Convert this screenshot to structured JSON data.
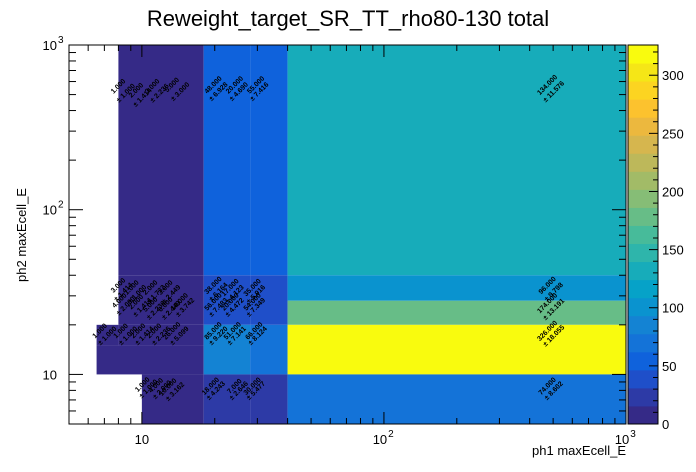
{
  "chart_data": {
    "type": "heatmap",
    "title": "Reweight_target_SR_TT_rho80-130 total",
    "xlabel": "ph1 maxEcell_E",
    "ylabel": "ph2 maxEcell_E",
    "x_scale": "log",
    "y_scale": "log",
    "xlim": [
      5,
      1000
    ],
    "ylim": [
      5,
      1000
    ],
    "x_ticks": [
      {
        "value": 10,
        "label": "10"
      },
      {
        "value": 100,
        "label": "10"
      },
      {
        "value": 1000,
        "label": "10"
      }
    ],
    "x_tick_exponents": [
      "",
      "2",
      "3"
    ],
    "y_ticks": [
      {
        "value": 10,
        "label": "10"
      },
      {
        "value": 100,
        "label": "10"
      },
      {
        "value": 1000,
        "label": "10"
      }
    ],
    "y_tick_exponents": [
      "",
      "2",
      "3"
    ],
    "colorbar": {
      "min": 0,
      "max": 326,
      "ticks": [
        "0",
        "50",
        "100",
        "150",
        "200",
        "250",
        "300"
      ],
      "tick_values": [
        0,
        50,
        100,
        150,
        200,
        250,
        300
      ],
      "palette": [
        "#352a87",
        "#2d3aa6",
        "#1f4fc9",
        "#0f62dc",
        "#1473d8",
        "#1483d3",
        "#0a93cf",
        "#06a2c8",
        "#17acba",
        "#2eb5ab",
        "#47bb9a",
        "#67bd87",
        "#86bd76",
        "#a2bb67",
        "#bdb85a",
        "#d6b64e",
        "#ecb83e",
        "#fcc22e",
        "#fcd421",
        "#f5e617",
        "#f9fb0e"
      ]
    },
    "x_edges": [
      5,
      6.5,
      7.5,
      8,
      9,
      10,
      12,
      14,
      18,
      20,
      25,
      28,
      32,
      40,
      1000
    ],
    "y_edges": [
      5,
      10,
      15,
      20,
      28,
      40,
      1000
    ],
    "cells": [
      {
        "x0": 8,
        "x1": 18,
        "y0": 40,
        "y1": 1000,
        "value": 12
      },
      {
        "x0": 18,
        "x1": 28,
        "y0": 40,
        "y1": 1000,
        "value": 48
      },
      {
        "x0": 28,
        "x1": 40,
        "y0": 40,
        "y1": 1000,
        "value": 55
      },
      {
        "x0": 40,
        "x1": 1000,
        "y0": 40,
        "y1": 1000,
        "value": 134
      },
      {
        "x0": 8,
        "x1": 18,
        "y0": 20,
        "y1": 40,
        "value": 8
      },
      {
        "x0": 18,
        "x1": 28,
        "y0": 20,
        "y1": 40,
        "value": 38
      },
      {
        "x0": 28,
        "x1": 40,
        "y0": 20,
        "y1": 40,
        "value": 45
      },
      {
        "x0": 40,
        "x1": 1000,
        "y0": 28,
        "y1": 40,
        "value": 96
      },
      {
        "x0": 40,
        "x1": 1000,
        "y0": 20,
        "y1": 28,
        "value": 174
      },
      {
        "x0": 6.5,
        "x1": 8,
        "y0": 15,
        "y1": 20,
        "value": 2
      },
      {
        "x0": 6.5,
        "x1": 18,
        "y0": 10,
        "y1": 15,
        "value": 10
      },
      {
        "x0": 8,
        "x1": 18,
        "y0": 15,
        "y1": 20,
        "value": 10
      },
      {
        "x0": 18,
        "x1": 28,
        "y0": 10,
        "y1": 20,
        "value": 85
      },
      {
        "x0": 28,
        "x1": 40,
        "y0": 10,
        "y1": 20,
        "value": 66
      },
      {
        "x0": 40,
        "x1": 1000,
        "y0": 10,
        "y1": 20,
        "value": 326
      },
      {
        "x0": 10,
        "x1": 18,
        "y0": 5,
        "y1": 10,
        "value": 10
      },
      {
        "x0": 18,
        "x1": 28,
        "y0": 5,
        "y1": 10,
        "value": 18
      },
      {
        "x0": 28,
        "x1": 40,
        "y0": 5,
        "y1": 10,
        "value": 30
      },
      {
        "x0": 40,
        "x1": 1000,
        "y0": 5,
        "y1": 10,
        "value": 74
      }
    ],
    "bin_labels": [
      {
        "x": 8.1,
        "y": 550,
        "text": "1.000"
      },
      {
        "x": 8.7,
        "y": 500,
        "text": "± 1.000"
      },
      {
        "x": 9.6,
        "y": 520,
        "text": "2.000"
      },
      {
        "x": 10.2,
        "y": 470,
        "text": "± 1.414"
      },
      {
        "x": 11.2,
        "y": 550,
        "text": "3.000"
      },
      {
        "x": 12.0,
        "y": 500,
        "text": "± 2.236"
      },
      {
        "x": 13.5,
        "y": 560,
        "text": "5.000"
      },
      {
        "x": 14.6,
        "y": 510,
        "text": "± 3.000"
      },
      {
        "x": 20.0,
        "y": 560,
        "text": "48.000"
      },
      {
        "x": 21.0,
        "y": 510,
        "text": "± 6.928"
      },
      {
        "x": 24.5,
        "y": 560,
        "text": "20.000"
      },
      {
        "x": 25.5,
        "y": 510,
        "text": "± 4.690"
      },
      {
        "x": 30.0,
        "y": 560,
        "text": "55.000"
      },
      {
        "x": 31.0,
        "y": 510,
        "text": "± 7.416"
      },
      {
        "x": 480,
        "y": 560,
        "text": "134.000"
      },
      {
        "x": 510,
        "y": 510,
        "text": "± 11.576"
      },
      {
        "x": 8.1,
        "y": 34,
        "text": "3.000"
      },
      {
        "x": 8.5,
        "y": 31,
        "text": "± 1.414"
      },
      {
        "x": 9.2,
        "y": 33,
        "text": "1.000"
      },
      {
        "x": 9.7,
        "y": 30,
        "text": "± 1.000"
      },
      {
        "x": 8.2,
        "y": 27.5,
        "text": "4.000"
      },
      {
        "x": 8.7,
        "y": 25.5,
        "text": "± 2.000"
      },
      {
        "x": 9.6,
        "y": 27,
        "text": "2.000"
      },
      {
        "x": 10.2,
        "y": 25,
        "text": "± 1.414"
      },
      {
        "x": 11.0,
        "y": 33,
        "text": "2.000"
      },
      {
        "x": 11.6,
        "y": 30,
        "text": "± 1.732"
      },
      {
        "x": 12.7,
        "y": 33,
        "text": "3.000"
      },
      {
        "x": 13.4,
        "y": 30,
        "text": "± 2.449"
      },
      {
        "x": 11.0,
        "y": 26,
        "text": "5.000"
      },
      {
        "x": 11.6,
        "y": 24,
        "text": "± 2.236"
      },
      {
        "x": 12.7,
        "y": 26,
        "text": "6.000"
      },
      {
        "x": 13.4,
        "y": 24,
        "text": "± 2.449"
      },
      {
        "x": 14.5,
        "y": 27,
        "text": "14.000"
      },
      {
        "x": 15.3,
        "y": 25,
        "text": "± 3.742"
      },
      {
        "x": 20.0,
        "y": 34,
        "text": "38.000"
      },
      {
        "x": 21.0,
        "y": 31,
        "text": "± 6.164"
      },
      {
        "x": 20.0,
        "y": 27,
        "text": "56.000"
      },
      {
        "x": 21.0,
        "y": 25,
        "text": "± 7.483"
      },
      {
        "x": 23.5,
        "y": 33,
        "text": "17.000"
      },
      {
        "x": 24.5,
        "y": 30,
        "text": "± 4.123"
      },
      {
        "x": 23.5,
        "y": 27,
        "text": "20.000"
      },
      {
        "x": 24.5,
        "y": 25,
        "text": "± 4.472"
      },
      {
        "x": 29.0,
        "y": 33,
        "text": "35.000"
      },
      {
        "x": 30.0,
        "y": 30,
        "text": "± 5.916"
      },
      {
        "x": 29.0,
        "y": 27,
        "text": "54.000"
      },
      {
        "x": 30.0,
        "y": 25,
        "text": "± 7.349"
      },
      {
        "x": 480,
        "y": 34,
        "text": "96.000"
      },
      {
        "x": 510,
        "y": 31,
        "text": "± 9.798"
      },
      {
        "x": 480,
        "y": 26.5,
        "text": "174.000"
      },
      {
        "x": 510,
        "y": 24.3,
        "text": "± 13.191"
      },
      {
        "x": 6.8,
        "y": 18,
        "text": "1.000"
      },
      {
        "x": 7.3,
        "y": 16.8,
        "text": "± 1.000"
      },
      {
        "x": 8.3,
        "y": 18,
        "text": "1.000"
      },
      {
        "x": 8.9,
        "y": 16.8,
        "text": "± 1.000"
      },
      {
        "x": 9.8,
        "y": 18,
        "text": "2.000"
      },
      {
        "x": 10.4,
        "y": 16.8,
        "text": "± 1.414"
      },
      {
        "x": 11.4,
        "y": 18,
        "text": "2.000"
      },
      {
        "x": 12.2,
        "y": 16.8,
        "text": "± 2.236"
      },
      {
        "x": 13.5,
        "y": 18,
        "text": "26.000"
      },
      {
        "x": 14.5,
        "y": 16.8,
        "text": "± 5.099"
      },
      {
        "x": 20.0,
        "y": 18,
        "text": "85.000"
      },
      {
        "x": 21.0,
        "y": 16.8,
        "text": "± 9.220"
      },
      {
        "x": 24.0,
        "y": 18,
        "text": "51.000"
      },
      {
        "x": 25.0,
        "y": 16.8,
        "text": "± 7.141"
      },
      {
        "x": 29.5,
        "y": 18,
        "text": "66.000"
      },
      {
        "x": 30.5,
        "y": 16.8,
        "text": "± 8.124"
      },
      {
        "x": 480,
        "y": 18,
        "text": "326.000"
      },
      {
        "x": 510,
        "y": 16.8,
        "text": "± 18.055"
      },
      {
        "x": 10.2,
        "y": 8.5,
        "text": "1.000"
      },
      {
        "x": 10.8,
        "y": 8.0,
        "text": "± 1.000"
      },
      {
        "x": 11.6,
        "y": 8.4,
        "text": "4.000"
      },
      {
        "x": 12.3,
        "y": 7.9,
        "text": "± 2.000"
      },
      {
        "x": 13.0,
        "y": 8.2,
        "text": "10.000"
      },
      {
        "x": 13.9,
        "y": 7.7,
        "text": "± 3.162"
      },
      {
        "x": 19.5,
        "y": 8.3,
        "text": "18.000"
      },
      {
        "x": 20.5,
        "y": 7.8,
        "text": "± 4.243"
      },
      {
        "x": 24.5,
        "y": 8.3,
        "text": "7.000"
      },
      {
        "x": 25.5,
        "y": 7.8,
        "text": "± 2.646"
      },
      {
        "x": 29.0,
        "y": 8.3,
        "text": "30.000"
      },
      {
        "x": 30.0,
        "y": 7.8,
        "text": "± 5.477"
      },
      {
        "x": 480,
        "y": 8.3,
        "text": "74.000"
      },
      {
        "x": 510,
        "y": 7.8,
        "text": "± 8.602"
      }
    ]
  }
}
